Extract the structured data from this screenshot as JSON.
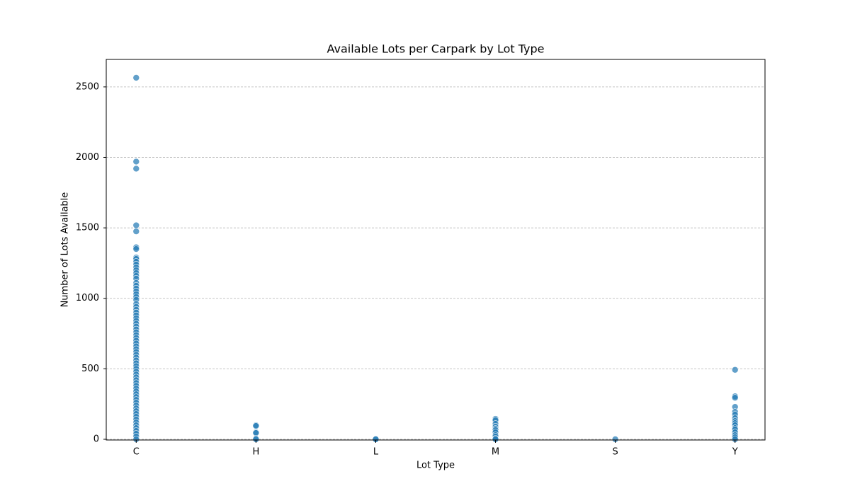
{
  "chart_data": {
    "type": "strip",
    "title": "Available Lots per Carpark by Lot Type",
    "x_label": "Lot Type",
    "y_label": "Number of Lots Available",
    "categories": [
      "C",
      "H",
      "L",
      "M",
      "S",
      "Y"
    ],
    "values": [
      [
        2565,
        1970,
        1920,
        1518,
        1475,
        1362,
        1350,
        1290,
        1280,
        1260,
        1240,
        1220,
        1200,
        1180,
        1160,
        1140,
        1110,
        1090,
        1070,
        1050,
        1030,
        1010,
        990,
        960,
        940,
        920,
        900,
        880,
        860,
        840,
        820,
        800,
        780,
        760,
        740,
        720,
        700,
        680,
        660,
        640,
        620,
        600,
        580,
        560,
        540,
        520,
        500,
        480,
        460,
        440,
        420,
        400,
        380,
        360,
        340,
        320,
        300,
        280,
        260,
        240,
        220,
        200,
        180,
        160,
        140,
        120,
        100,
        80,
        60,
        40,
        20,
        0
      ],
      [
        100,
        95,
        50,
        45,
        5,
        0
      ],
      [
        2,
        0
      ],
      [
        145,
        135,
        110,
        90,
        75,
        65,
        50,
        30,
        20,
        5,
        0
      ],
      [
        0
      ],
      [
        493,
        305,
        295,
        230,
        195,
        175,
        150,
        130,
        115,
        100,
        80,
        70,
        50,
        30,
        15,
        0
      ]
    ],
    "color": "#1f77b4",
    "xlim": [
      -0.25,
      5.25
    ],
    "ylim": [
      -5,
      2695
    ],
    "yticks": [
      0,
      500,
      1000,
      1500,
      2000,
      2500
    ],
    "grid": true
  }
}
